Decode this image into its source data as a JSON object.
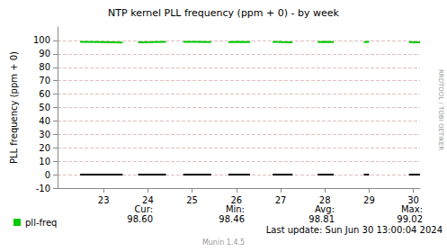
{
  "chart_data": {
    "type": "line",
    "title": "NTP kernel PLL frequency (ppm + 0) - by week",
    "y_label": "PLL frequency (ppm + 0)",
    "side_text": "RRDTOOL / TOBI OETIKER",
    "x": [
      22.47,
      22.95,
      23.43,
      23.6,
      23.78,
      24.1,
      24.41,
      24.6,
      24.8,
      25.1,
      25.43,
      25.6,
      25.82,
      26.05,
      26.31,
      26.55,
      26.82,
      27.05,
      27.27,
      27.55,
      27.84,
      28.02,
      28.2,
      28.5,
      28.88,
      29.0,
      29.45,
      29.9,
      30.05,
      30.15
    ],
    "xlim": [
      21.96,
      30.15
    ],
    "xticks": [
      23,
      24,
      25,
      26,
      27,
      28,
      29,
      30
    ],
    "ylim": [
      -10,
      110
    ],
    "yticks": [
      -10,
      0,
      10,
      20,
      30,
      40,
      50,
      60,
      70,
      80,
      90,
      100
    ],
    "grid": true,
    "legend": "bottom-left",
    "series": [
      {
        "name": "pll-freq",
        "color": "#00cc00",
        "values": [
          98.9,
          98.7,
          98.46,
          null,
          98.6,
          98.8,
          99.02,
          null,
          98.9,
          99.0,
          98.8,
          null,
          98.7,
          98.9,
          98.8,
          null,
          98.9,
          98.7,
          98.6,
          null,
          98.8,
          98.9,
          98.7,
          null,
          98.8,
          98.9,
          null,
          98.7,
          98.6,
          98.6
        ]
      },
      {
        "color": "#000000",
        "values": [
          0,
          0,
          0,
          null,
          0,
          0,
          0,
          null,
          0,
          0,
          0,
          null,
          0,
          0,
          0,
          null,
          0,
          0,
          0,
          null,
          0,
          0,
          0,
          null,
          0,
          0,
          null,
          0,
          0,
          0
        ]
      }
    ],
    "summary": {
      "columns": [
        "Cur:",
        "Min:",
        "Avg:",
        "Max:"
      ],
      "values": [
        "98.60",
        "98.46",
        "98.81",
        "99.02"
      ]
    },
    "footer": {
      "last_update": "Last update: Sun Jun 30 13:00:04 2024",
      "version": "Munin 1.4.5"
    }
  }
}
